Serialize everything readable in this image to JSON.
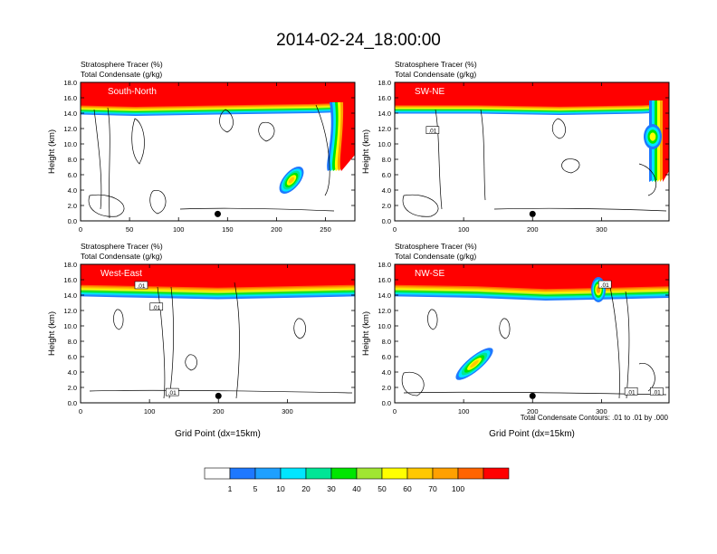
{
  "figure": {
    "title": "2014-02-24_18:00:00",
    "contour_note": "Total Condensate Contours: .01 to .01 by .000"
  },
  "colorbar": {
    "labels": [
      "1",
      "5",
      "10",
      "20",
      "30",
      "40",
      "50",
      "60",
      "70",
      "100"
    ],
    "colors": [
      "#ffffff",
      "#1e78ff",
      "#1ea0ff",
      "#00e6ff",
      "#00e696",
      "#00e600",
      "#a0e632",
      "#ffff00",
      "#ffc800",
      "#ffa000",
      "#ff6400",
      "#ff0000"
    ]
  },
  "chart_data": [
    {
      "type": "heatmap",
      "label": "South-North",
      "subtitle_line1": "Stratosphere Tracer   (%)",
      "subtitle_line2": "Total Condensate   (g/kg)",
      "xlabel": "",
      "ylabel": "Height (km)",
      "xlim": [
        0,
        280
      ],
      "ylim": [
        0,
        18
      ],
      "xticks": [
        "0",
        "50",
        "100",
        "150",
        "200",
        "250"
      ],
      "yticks": [
        "0.0",
        "2.0",
        "4.0",
        "6.0",
        "8.0",
        "10.0",
        "12.0",
        "14.0",
        "16.0",
        "18.0"
      ],
      "marker": {
        "x": 140,
        "y": 0.9
      },
      "contour_labels": []
    },
    {
      "type": "heatmap",
      "label": "SW-NE",
      "subtitle_line1": "Stratosphere Tracer   (%)",
      "subtitle_line2": "Total Condensate   (g/kg)",
      "xlabel": "",
      "ylabel": "Height (km)",
      "xlim": [
        0,
        398
      ],
      "ylim": [
        0,
        18
      ],
      "xticks": [
        "0",
        "100",
        "200",
        "300"
      ],
      "yticks": [
        "0.0",
        "2.0",
        "4.0",
        "6.0",
        "8.0",
        "10.0",
        "12.0",
        "14.0",
        "16.0",
        "18.0"
      ],
      "marker": {
        "x": 200,
        "y": 0.9
      },
      "contour_labels": [
        {
          "text": ".01",
          "x": 55,
          "y": 11.8
        }
      ]
    },
    {
      "type": "heatmap",
      "label": "West-East",
      "subtitle_line1": "Stratosphere Tracer   (%)",
      "subtitle_line2": "Total Condensate   (g/kg)",
      "xlabel": "Grid Point (dx=15km)",
      "ylabel": "Height (km)",
      "xlim": [
        0,
        398
      ],
      "ylim": [
        0,
        18
      ],
      "xticks": [
        "0",
        "100",
        "200",
        "300"
      ],
      "yticks": [
        "0.0",
        "2.0",
        "4.0",
        "6.0",
        "8.0",
        "10.0",
        "12.0",
        "14.0",
        "16.0",
        "18.0"
      ],
      "marker": {
        "x": 200,
        "y": 0.9
      },
      "contour_labels": [
        {
          "text": ".01",
          "x": 88,
          "y": 15.3
        },
        {
          "text": ".01",
          "x": 110,
          "y": 12.5
        },
        {
          "text": ".01",
          "x": 133,
          "y": 1.4
        }
      ]
    },
    {
      "type": "heatmap",
      "label": "NW-SE",
      "subtitle_line1": "Stratosphere Tracer   (%)",
      "subtitle_line2": "Total Condensate   (g/kg)",
      "xlabel": "Grid Point (dx=15km)",
      "ylabel": "Height (km)",
      "xlim": [
        0,
        398
      ],
      "ylim": [
        0,
        18
      ],
      "xticks": [
        "0",
        "100",
        "200",
        "300"
      ],
      "yticks": [
        "0.0",
        "2.0",
        "4.0",
        "6.0",
        "8.0",
        "10.0",
        "12.0",
        "14.0",
        "16.0",
        "18.0"
      ],
      "marker": {
        "x": 200,
        "y": 0.9
      },
      "contour_labels": [
        {
          "text": ".01",
          "x": 305,
          "y": 15.4
        },
        {
          "text": ".01",
          "x": 343,
          "y": 1.5
        },
        {
          "text": ".01",
          "x": 380,
          "y": 1.5
        }
      ]
    }
  ]
}
